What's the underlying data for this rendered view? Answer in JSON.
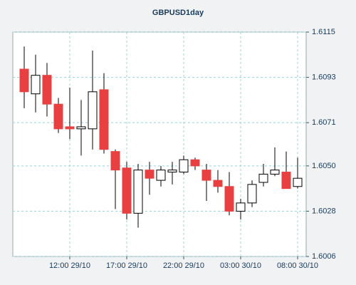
{
  "chart_data": {
    "type": "candlestick",
    "title": "GBPUSD1day",
    "categories": [
      null,
      null,
      null,
      null,
      "12:00 29/10",
      null,
      null,
      null,
      null,
      "17:00 29/10",
      null,
      null,
      null,
      null,
      "22:00 29/10",
      null,
      null,
      null,
      null,
      "03:00 30/10",
      null,
      null,
      null,
      null,
      "08:00 30/10"
    ],
    "open": [
      1.6097,
      1.6085,
      1.6094,
      1.608,
      1.6069,
      1.6068,
      1.6068,
      1.6087,
      1.6057,
      1.6049,
      1.6027,
      1.6048,
      1.6043,
      1.6047,
      1.6047,
      1.6053,
      1.6048,
      1.6043,
      1.604,
      1.6028,
      1.6032,
      1.6042,
      1.6046,
      1.6047,
      1.604
    ],
    "high": [
      1.6108,
      1.6104,
      1.61,
      1.6083,
      1.6088,
      1.6082,
      1.6106,
      1.6095,
      1.6058,
      1.6052,
      1.6051,
      1.6052,
      1.605,
      1.6052,
      1.6055,
      1.6054,
      1.6051,
      1.6048,
      1.6047,
      1.6034,
      1.6043,
      1.6051,
      1.6059,
      1.6057,
      1.6054
    ],
    "low": [
      1.6078,
      1.6076,
      1.6074,
      1.6066,
      1.6063,
      1.6055,
      1.6058,
      1.6056,
      1.6029,
      1.6024,
      1.602,
      1.6036,
      1.604,
      1.6041,
      1.6046,
      1.6048,
      1.6033,
      1.6037,
      1.6026,
      1.6024,
      1.603,
      1.604,
      1.6045,
      1.6039,
      1.6039
    ],
    "close": [
      1.6086,
      1.6094,
      1.608,
      1.6068,
      1.6068,
      1.6069,
      1.6086,
      1.6058,
      1.6048,
      1.6027,
      1.6048,
      1.6044,
      1.6048,
      1.6048,
      1.6053,
      1.605,
      1.6043,
      1.604,
      1.6028,
      1.6032,
      1.6041,
      1.6046,
      1.6048,
      1.6039,
      1.6044
    ],
    "up_color": "#ffffff",
    "down_color": "#e84040",
    "ylim": [
      1.6006,
      1.6115
    ],
    "yticks": [
      1.6006,
      1.6028,
      {
        "value": 1.605,
        "label": "1.6050"
      },
      1.6071,
      1.6093,
      1.6115
    ],
    "grid": true
  }
}
